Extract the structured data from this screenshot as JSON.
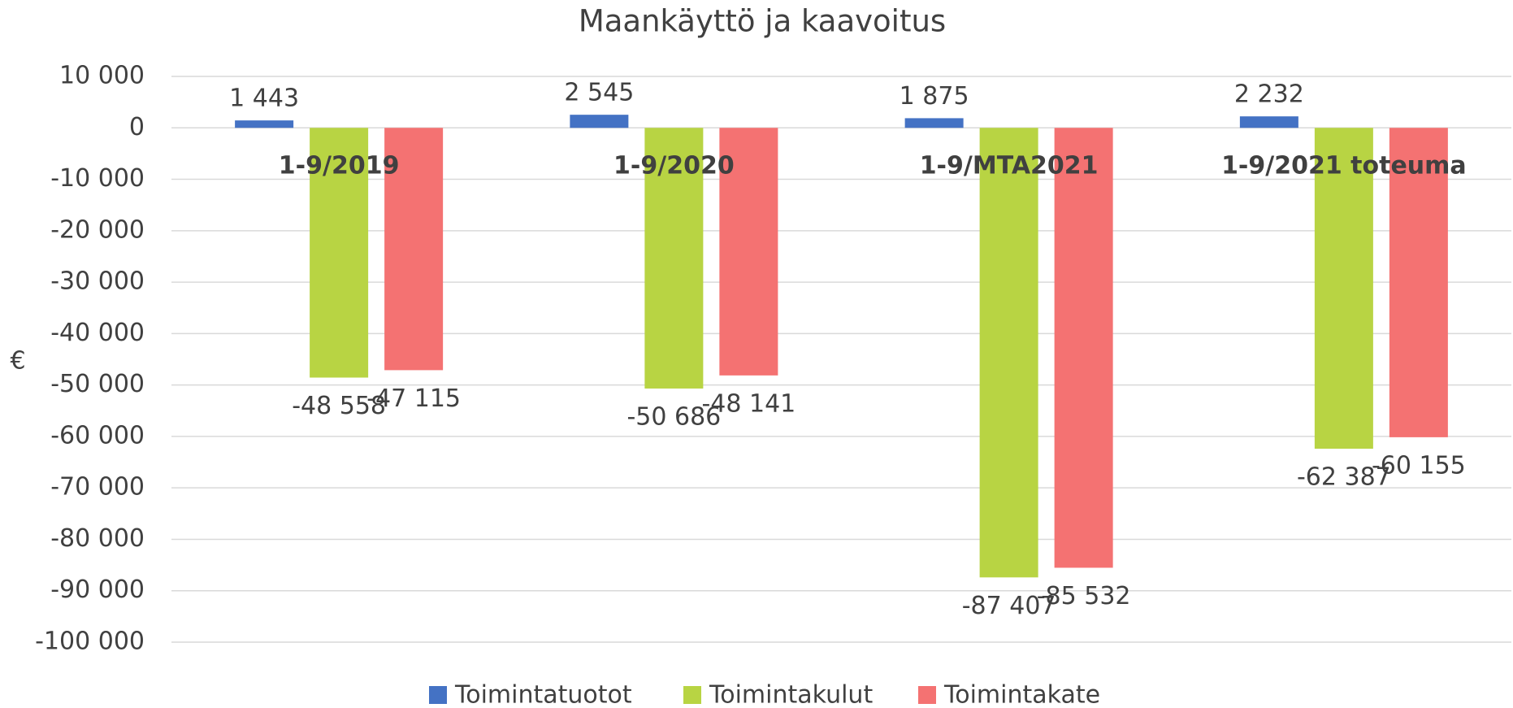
{
  "chart_data": {
    "type": "bar",
    "title": "Maankäyttö ja kaavoitus",
    "y_label": "€",
    "categories": [
      "1-9/2019",
      "1-9/2020",
      "1-9/MTA2021",
      "1-9/2021 toteuma"
    ],
    "series": [
      {
        "name": "Toimintatuotot",
        "color": "#4472c4",
        "values": [
          1443,
          2545,
          1875,
          2232
        ],
        "value_labels": [
          "1 443",
          "2 545",
          "1 875",
          "2 232"
        ]
      },
      {
        "name": "Toimintakulut",
        "color": "#b8d443",
        "values": [
          -48558,
          -50686,
          -87407,
          -62387
        ],
        "value_labels": [
          "-48 558",
          "-50 686",
          "-87 407",
          "-62 387"
        ]
      },
      {
        "name": "Toimintakate",
        "color": "#f47272",
        "values": [
          -47115,
          -48141,
          -85532,
          -60155
        ],
        "value_labels": [
          "-47 115",
          "-48 141",
          "-85 532",
          "-60 155"
        ]
      }
    ],
    "ylim": [
      -100000,
      10000
    ],
    "yticks": [
      {
        "value": 10000,
        "label": "10 000"
      },
      0,
      {
        "value": -10000,
        "label": "-10 000"
      },
      {
        "value": -20000,
        "label": "-20 000"
      },
      {
        "value": -30000,
        "label": "-30 000"
      },
      {
        "value": -40000,
        "label": "-40 000"
      },
      {
        "value": -50000,
        "label": "-50 000"
      },
      {
        "value": -60000,
        "label": "-60 000"
      },
      {
        "value": -70000,
        "label": "-70 000"
      },
      {
        "value": -80000,
        "label": "-80 000"
      },
      {
        "value": -90000,
        "label": "-90 000"
      },
      {
        "value": -100000,
        "label": "-100 000"
      }
    ],
    "grid": true,
    "legend": "bottom"
  }
}
